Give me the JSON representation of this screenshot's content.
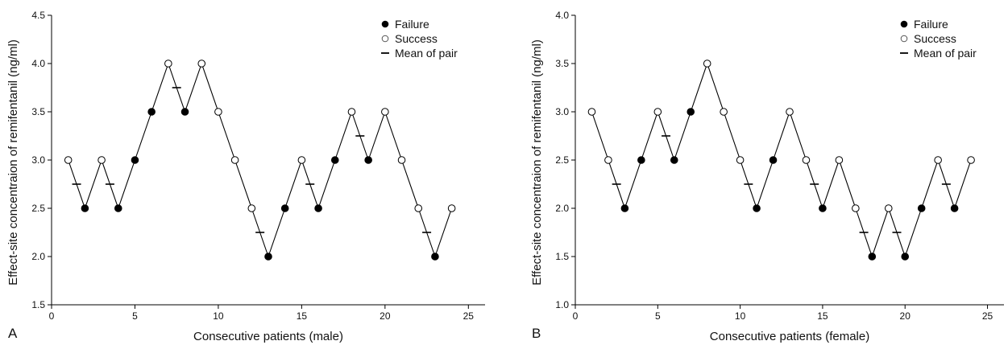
{
  "chart_data": [
    {
      "type": "scatter",
      "panel_label": "A",
      "xlabel": "Consecutive patients (male)",
      "ylabel": "Effect-site concentraion of remifentanil (ng/ml)",
      "xlim": [
        0,
        26
      ],
      "ylim": [
        1.5,
        4.5
      ],
      "xticks": [
        0,
        5,
        10,
        15,
        20,
        25
      ],
      "yticks": [
        1.5,
        2.0,
        2.5,
        3.0,
        3.5,
        4.0,
        4.5
      ],
      "ytick_labels": [
        "1.5",
        "2.0",
        "2.5",
        "3.0",
        "3.5",
        "4.0",
        "4.5"
      ],
      "grid": false,
      "legend_position": "top-right",
      "legend": [
        "Failure",
        "Success",
        "Mean of pair"
      ],
      "series": [
        {
          "name": "Success",
          "points": [
            [
              1,
              3.0
            ],
            [
              3,
              3.0
            ],
            [
              7,
              4.0
            ],
            [
              9,
              4.0
            ],
            [
              10,
              3.5
            ],
            [
              11,
              3.0
            ],
            [
              12,
              2.5
            ],
            [
              15,
              3.0
            ],
            [
              18,
              3.5
            ],
            [
              20,
              3.5
            ],
            [
              21,
              3.0
            ],
            [
              22,
              2.5
            ],
            [
              24,
              2.5
            ]
          ]
        },
        {
          "name": "Failure",
          "points": [
            [
              2,
              2.5
            ],
            [
              4,
              2.5
            ],
            [
              5,
              3.0
            ],
            [
              6,
              3.5
            ],
            [
              8,
              3.5
            ],
            [
              13,
              2.0
            ],
            [
              14,
              2.5
            ],
            [
              16,
              2.5
            ],
            [
              17,
              3.0
            ],
            [
              19,
              3.0
            ],
            [
              23,
              2.0
            ]
          ]
        },
        {
          "name": "Mean of pair",
          "points": [
            [
              1.5,
              2.75
            ],
            [
              3.5,
              2.75
            ],
            [
              7.5,
              3.75
            ],
            [
              12.5,
              2.25
            ],
            [
              15.5,
              2.75
            ],
            [
              18.5,
              3.25
            ],
            [
              22.5,
              2.25
            ]
          ]
        }
      ],
      "sequence": [
        3.0,
        2.5,
        3.0,
        2.5,
        3.0,
        3.5,
        4.0,
        3.5,
        4.0,
        3.5,
        3.0,
        2.5,
        2.0,
        2.5,
        3.0,
        2.5,
        3.0,
        3.5,
        3.0,
        3.5,
        3.0,
        2.5,
        2.0,
        2.5
      ]
    },
    {
      "type": "scatter",
      "panel_label": "B",
      "xlabel": "Consecutive patients (female)",
      "ylabel": "Effect-site concentraion of remifentanil (ng/ml)",
      "xlim": [
        0,
        26
      ],
      "ylim": [
        1.0,
        4.0
      ],
      "xticks": [
        0,
        5,
        10,
        15,
        20,
        25
      ],
      "yticks": [
        1.0,
        1.5,
        2.0,
        2.5,
        3.0,
        3.5,
        4.0
      ],
      "ytick_labels": [
        "1.0",
        "1.5",
        "2.0",
        "2.5",
        "3.0",
        "3.5",
        "4.0"
      ],
      "grid": false,
      "legend_position": "top-right",
      "legend": [
        "Failure",
        "Success",
        "Mean of pair"
      ],
      "series": [
        {
          "name": "Success",
          "points": [
            [
              1,
              3.0
            ],
            [
              2,
              2.5
            ],
            [
              5,
              3.0
            ],
            [
              8,
              3.5
            ],
            [
              9,
              3.0
            ],
            [
              10,
              2.5
            ],
            [
              13,
              3.0
            ],
            [
              14,
              2.5
            ],
            [
              16,
              2.5
            ],
            [
              17,
              2.0
            ],
            [
              19,
              2.0
            ],
            [
              22,
              2.5
            ],
            [
              24,
              2.5
            ]
          ]
        },
        {
          "name": "Failure",
          "points": [
            [
              3,
              2.0
            ],
            [
              4,
              2.5
            ],
            [
              6,
              2.5
            ],
            [
              7,
              3.0
            ],
            [
              11,
              2.0
            ],
            [
              12,
              2.5
            ],
            [
              15,
              2.0
            ],
            [
              18,
              1.5
            ],
            [
              20,
              1.5
            ],
            [
              21,
              2.0
            ],
            [
              23,
              2.0
            ]
          ]
        },
        {
          "name": "Mean of pair",
          "points": [
            [
              2.5,
              2.25
            ],
            [
              5.5,
              2.75
            ],
            [
              10.5,
              2.25
            ],
            [
              14.5,
              2.25
            ],
            [
              17.5,
              1.75
            ],
            [
              19.5,
              1.75
            ],
            [
              22.5,
              2.25
            ]
          ]
        }
      ],
      "sequence": [
        3.0,
        2.5,
        2.0,
        2.5,
        3.0,
        2.5,
        3.0,
        3.5,
        3.0,
        2.5,
        2.0,
        2.5,
        3.0,
        2.5,
        2.0,
        2.5,
        2.0,
        1.5,
        2.0,
        1.5,
        2.0,
        2.5,
        2.0,
        2.5
      ]
    }
  ]
}
